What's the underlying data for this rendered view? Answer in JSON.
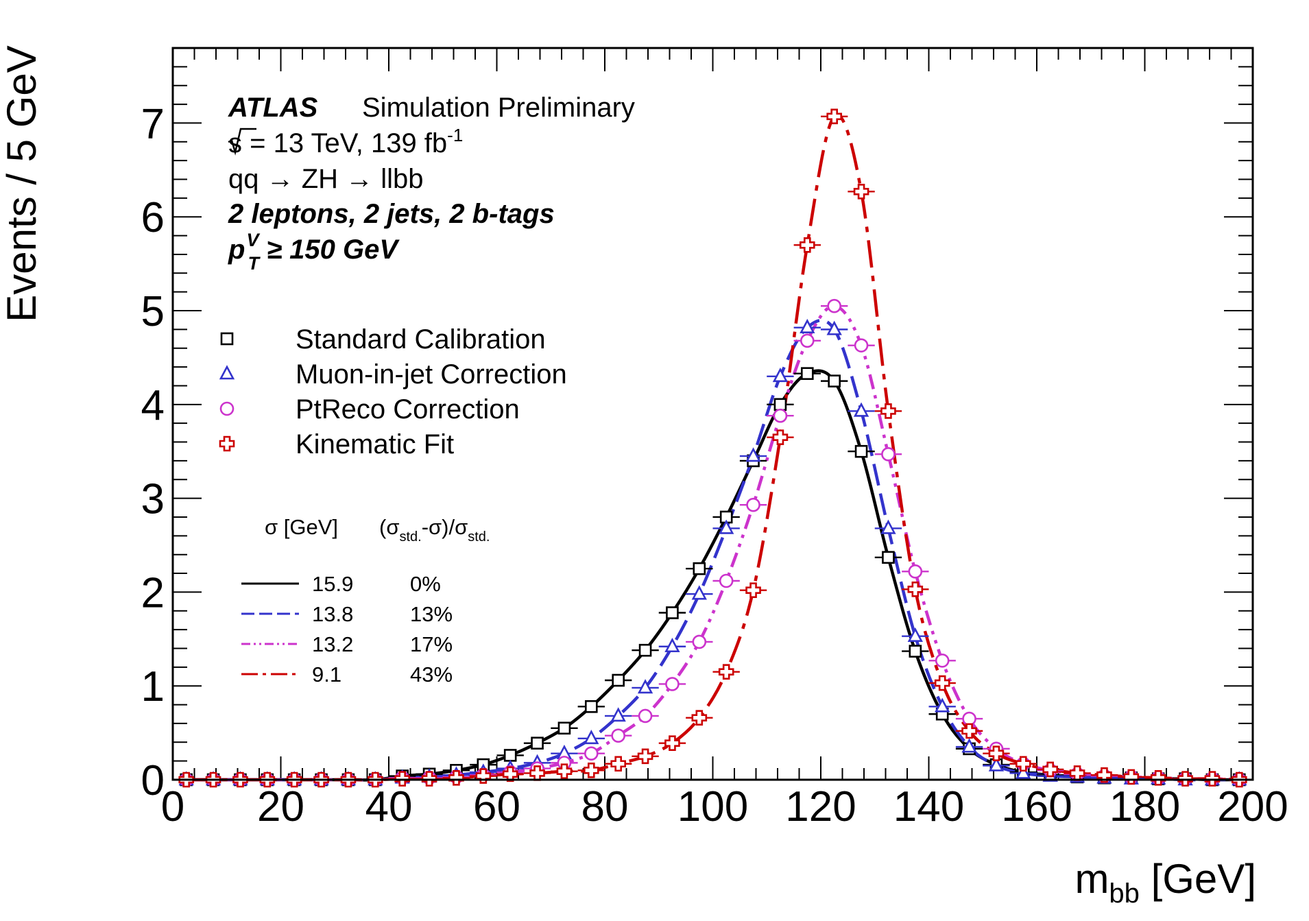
{
  "labels": {
    "atlas": "ATLAS",
    "simulation": "Simulation Preliminary",
    "energy_s": "s",
    "energy_rest": " = 13 TeV, 139 fb",
    "energy_exp": "-1",
    "process": "qq → ZH → llbb",
    "selection": "2 leptons, 2 jets, 2 b-tags",
    "pt_p": "p",
    "pt_sup": "V",
    "pt_sub": "T",
    "pt_rest": " ≥ 150 GeV",
    "col_sigma": "σ [GeV]",
    "col_rel_a": "(σ",
    "col_rel_sub1": "std.",
    "col_rel_b": "-σ)/σ",
    "col_rel_sub2": "std."
  },
  "chart_data": {
    "type": "scatter",
    "xlabel_main": "m",
    "xlabel_sub": "bb",
    "xlabel_unit": " [GeV]",
    "ylabel": "Events / 5 GeV",
    "xlim": [
      0,
      200
    ],
    "ylim": [
      0,
      7.8
    ],
    "xticks": [
      "0",
      "20",
      "40",
      "60",
      "80",
      "100",
      "120",
      "140",
      "160",
      "180",
      "200"
    ],
    "yticks": [
      "0",
      "1",
      "2",
      "3",
      "4",
      "5",
      "6",
      "7"
    ],
    "x": [
      2.5,
      7.5,
      12.5,
      17.5,
      22.5,
      27.5,
      32.5,
      37.5,
      42.5,
      47.5,
      52.5,
      57.5,
      62.5,
      67.5,
      72.5,
      77.5,
      82.5,
      87.5,
      92.5,
      97.5,
      102.5,
      107.5,
      112.5,
      117.5,
      122.5,
      127.5,
      132.5,
      137.5,
      142.5,
      147.5,
      152.5,
      157.5,
      162.5,
      167.5,
      172.5,
      177.5,
      182.5,
      187.5,
      192.5,
      197.5
    ],
    "legend_position": "top-left",
    "series": [
      {
        "name": "Standard Calibration",
        "marker": "square",
        "color": "#000000",
        "dash": "",
        "sigma": "15.9",
        "rel": "0%",
        "values": [
          0,
          0,
          0,
          0,
          0,
          0,
          0,
          0,
          0.04,
          0.06,
          0.1,
          0.16,
          0.26,
          0.39,
          0.55,
          0.78,
          1.06,
          1.38,
          1.78,
          2.25,
          2.8,
          3.4,
          4.0,
          4.33,
          4.25,
          3.5,
          2.37,
          1.37,
          0.7,
          0.33,
          0.16,
          0.08,
          0.05,
          0.03,
          0.02,
          0.02,
          0.01,
          0.01,
          0,
          0
        ]
      },
      {
        "name": "Muon-in-jet Correction",
        "marker": "triangle",
        "color": "#3333cc",
        "dash": "32 12",
        "sigma": "13.8",
        "rel": "13%",
        "values": [
          0,
          0,
          0,
          0,
          0,
          0,
          0,
          0,
          0.02,
          0.03,
          0.05,
          0.08,
          0.12,
          0.18,
          0.28,
          0.44,
          0.68,
          0.98,
          1.42,
          1.98,
          2.68,
          3.45,
          4.3,
          4.82,
          4.8,
          3.93,
          2.68,
          1.53,
          0.78,
          0.35,
          0.15,
          0.07,
          0.04,
          0.03,
          0.02,
          0.01,
          0.01,
          0,
          0,
          0
        ]
      },
      {
        "name": "PtReco Correction",
        "marker": "circle",
        "color": "#cc33cc",
        "dash": "22 9 5 9 5 9",
        "sigma": "13.2",
        "rel": "17%",
        "values": [
          0,
          0,
          0,
          0,
          0,
          0,
          0,
          0,
          0.02,
          0.02,
          0.03,
          0.05,
          0.08,
          0.12,
          0.18,
          0.28,
          0.47,
          0.68,
          1.02,
          1.47,
          2.12,
          2.93,
          3.88,
          4.68,
          5.05,
          4.63,
          3.47,
          2.22,
          1.27,
          0.65,
          0.33,
          0.17,
          0.1,
          0.06,
          0.04,
          0.03,
          0.02,
          0.01,
          0.01,
          0
        ]
      },
      {
        "name": "Kinematic Fit",
        "marker": "cross",
        "color": "#cc0000",
        "dash": "40 12 8 12",
        "sigma": "9.1",
        "rel": "43%",
        "values": [
          0,
          0,
          0,
          0,
          0,
          0,
          0,
          0,
          0.01,
          0.01,
          0.02,
          0.04,
          0.06,
          0.07,
          0.09,
          0.1,
          0.17,
          0.25,
          0.39,
          0.66,
          1.15,
          2.02,
          3.65,
          5.7,
          7.07,
          6.27,
          3.93,
          2.03,
          1.03,
          0.52,
          0.28,
          0.17,
          0.11,
          0.07,
          0.05,
          0.03,
          0.02,
          0.01,
          0.01,
          0
        ]
      }
    ]
  }
}
